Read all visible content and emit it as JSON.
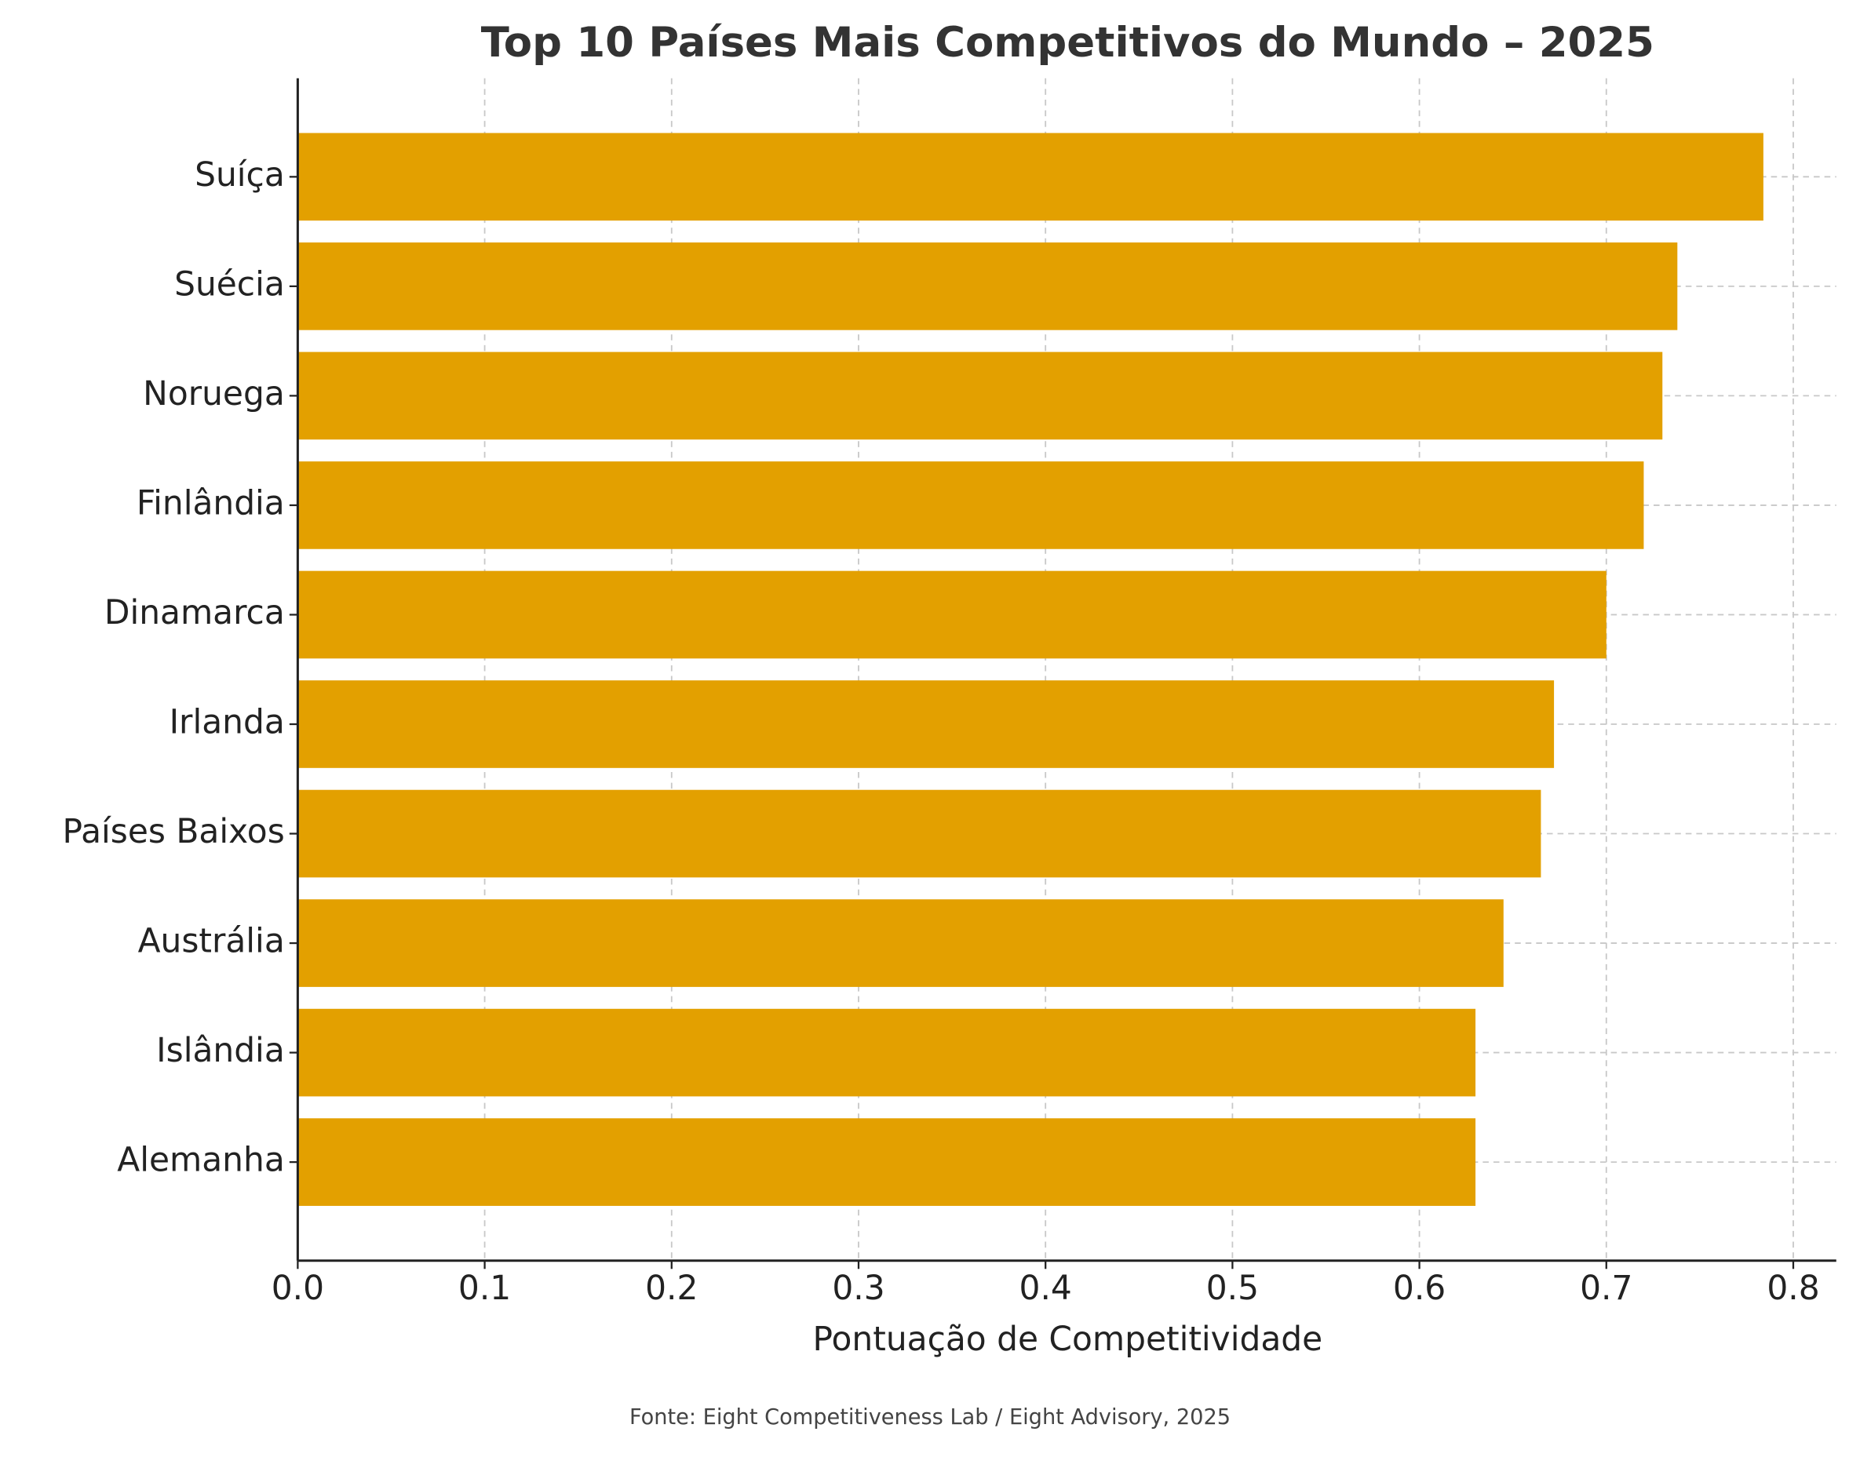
{
  "chart_data": {
    "type": "barh",
    "title": "Top 10 Países Mais Competitivos do Mundo – 2025",
    "xlabel": "Pontuação de Competitividade",
    "source": "Fonte: Eight Competitiveness Lab / Eight Advisory, 2025",
    "categories": [
      "Suíça",
      "Suécia",
      "Noruega",
      "Finlândia",
      "Dinamarca",
      "Irlanda",
      "Países Baixos",
      "Austrália",
      "Islândia",
      "Alemanha"
    ],
    "values": [
      0.784,
      0.738,
      0.73,
      0.72,
      0.7,
      0.672,
      0.665,
      0.645,
      0.63,
      0.63
    ],
    "color": "#e3a000",
    "xlim": [
      0,
      0.823
    ],
    "xticks": [
      {
        "value": 0,
        "label": "0.0"
      },
      0.1,
      0.2,
      0.3,
      0.4,
      0.5,
      0.6,
      0.7,
      0.8
    ],
    "grid": true
  }
}
